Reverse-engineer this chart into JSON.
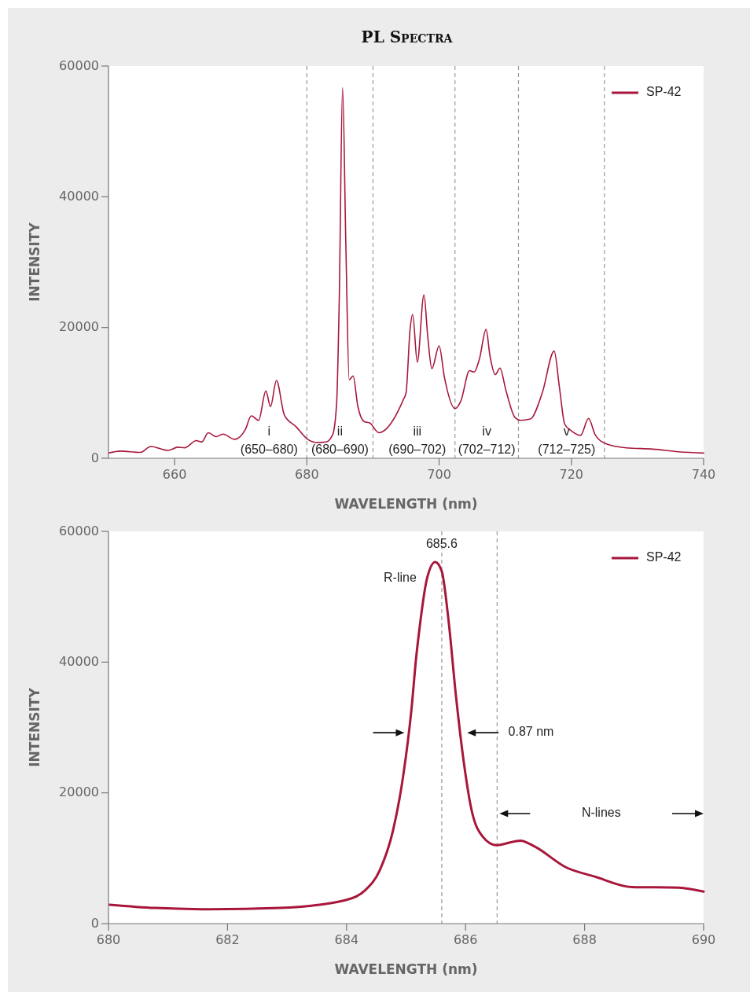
{
  "chart_data": [
    {
      "type": "line",
      "title": "PL Spectra",
      "xlabel": "WAVELENGTH (nm)",
      "ylabel": "INTENSITY",
      "xlim": [
        650,
        740
      ],
      "xticks": [
        660,
        680,
        700,
        720,
        740
      ],
      "ylim": [
        0,
        60000
      ],
      "yticks": [
        0,
        20000,
        40000,
        60000
      ],
      "grid": false,
      "legend": "top right",
      "line_style": "solid",
      "marker": "none",
      "series": [
        {
          "name": "SP-42",
          "color": "#a8173b",
          "x": [
            650,
            651.8,
            654.8,
            656.4,
            659.0,
            660.5,
            661.5,
            663.3,
            664.1,
            665.1,
            666.3,
            667.3,
            669.1,
            670.7,
            671.6,
            672.7,
            673.8,
            674.5,
            675.4,
            676.6,
            678.4,
            680.0,
            681.5,
            682.9,
            683.9,
            684.5,
            684.9,
            685.4,
            685.9,
            686.4,
            687.0,
            687.7,
            688.7,
            689.5,
            690.9,
            691.3,
            694.6,
            695.0,
            695.6,
            696.0,
            696.7,
            697.7,
            698.3,
            698.9,
            700.0,
            700.8,
            702.4,
            703.3,
            704.6,
            705.3,
            706.1,
            707.1,
            707.7,
            708.5,
            709.2,
            710.1,
            711.5,
            712.3,
            713.8,
            715.6,
            717.4,
            718.2,
            719.0,
            720.0,
            721.4,
            722.6,
            723.6,
            725.3,
            728.3,
            732.3,
            736.2,
            740
          ],
          "values": [
            800,
            1100,
            900,
            1800,
            1200,
            1700,
            1600,
            2700,
            2500,
            3900,
            3300,
            3700,
            2900,
            4400,
            6500,
            5800,
            10300,
            7900,
            11900,
            6600,
            4800,
            3000,
            2400,
            2500,
            3600,
            8400,
            24400,
            56700,
            32400,
            12000,
            12600,
            8000,
            5600,
            5400,
            3900,
            4000,
            9000,
            10000,
            19600,
            22000,
            14700,
            25000,
            18400,
            13700,
            17200,
            12400,
            7600,
            8800,
            13400,
            13200,
            15200,
            19700,
            15600,
            12800,
            13800,
            10400,
            6200,
            5800,
            6000,
            10000,
            16400,
            10800,
            5200,
            4200,
            3500,
            6100,
            3600,
            2200,
            1600,
            1400,
            1000,
            800
          ]
        }
      ],
      "ref_lines": [
        {
          "axis": "x",
          "value": 680
        },
        {
          "axis": "x",
          "value": 690
        },
        {
          "axis": "x",
          "value": 702.4
        },
        {
          "axis": "x",
          "value": 712
        },
        {
          "axis": "x",
          "value": 725
        }
      ],
      "annotations": [
        "i",
        "(650–680)",
        "ii",
        "(680–690)",
        "iii",
        "(690–702)",
        "iv",
        "(702–712)",
        "v",
        "(712–725)"
      ]
    },
    {
      "type": "line",
      "xlabel": "WAVELENGTH (nm)",
      "ylabel": "INTENSITY",
      "xlim": [
        680,
        690
      ],
      "xticks": [
        680,
        682,
        684,
        686,
        688,
        690
      ],
      "ylim": [
        0,
        60000
      ],
      "yticks": [
        0,
        20000,
        40000,
        60000
      ],
      "grid": false,
      "legend": "top right",
      "line_style": "solid",
      "marker": "none",
      "series": [
        {
          "name": "SP-42",
          "color": "#a8173b",
          "x": [
            680.02,
            680.78,
            681.7,
            682.89,
            683.99,
            684.3,
            684.56,
            684.78,
            684.96,
            685.09,
            685.17,
            685.22,
            685.35,
            685.49,
            685.6,
            685.71,
            685.84,
            685.97,
            686.1,
            686.28,
            686.52,
            686.92,
            687.16,
            687.69,
            688.17,
            688.79,
            689.58,
            690.0
          ],
          "values": [
            2900,
            2400,
            2200,
            2400,
            3600,
            5000,
            8200,
            14200,
            23100,
            32700,
            40700,
            44700,
            52700,
            55300,
            53900,
            46700,
            34700,
            24700,
            17400,
            13400,
            12000,
            12700,
            11800,
            8600,
            7200,
            5600,
            5500,
            4900
          ]
        }
      ],
      "ref_lines": [
        {
          "axis": "x",
          "value": 685.6,
          "label": "685.6"
        },
        {
          "axis": "x",
          "value": 686.53
        }
      ],
      "annotations": [
        "R-line",
        "0.87 nm",
        "N-lines"
      ]
    }
  ]
}
